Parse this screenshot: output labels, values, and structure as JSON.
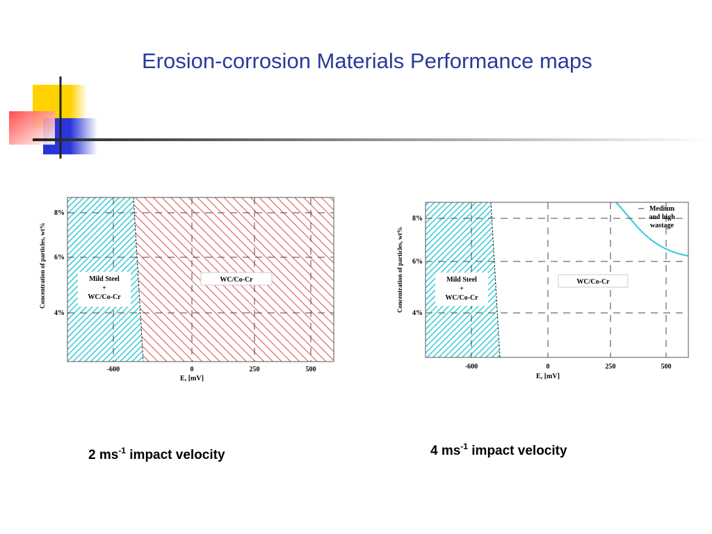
{
  "title": "Erosion-corrosion Materials Performance maps",
  "colors": {
    "title": "#2a3a9a",
    "cyan_region": "#33c9d6",
    "red_region": "#d94a4a",
    "deco_yellow": "#ffd200",
    "deco_red": "#ff3b3b",
    "deco_blue": "#2a35d9"
  },
  "maps": [
    {
      "y_axis_label": "Concentration of particles, wt%",
      "x_axis_label": "E, [mV]",
      "y_ticks": [
        "8%",
        "6%",
        "4%"
      ],
      "x_ticks": [
        "-600",
        "0",
        "250",
        "500"
      ],
      "regions": [
        {
          "label_lines": [
            "Mild Steel",
            "+",
            "WC/Co-Cr"
          ]
        },
        {
          "label_lines": [
            "WC/Co-Cr"
          ]
        }
      ],
      "caption": {
        "main": "2 ms",
        "sup": "-1",
        "rest": "impact velocity"
      }
    },
    {
      "y_axis_label": "Concentration of particles, wt%",
      "x_axis_label": "E, [mV]",
      "y_ticks": [
        "8%",
        "6%",
        "4%"
      ],
      "x_ticks": [
        "-600",
        "0",
        "250",
        "500"
      ],
      "regions": [
        {
          "label_lines": [
            "Mild Steel",
            "+",
            "WC/Co-Cr"
          ]
        },
        {
          "label_lines": [
            "WC/Co-Cr"
          ]
        },
        {
          "label_lines": [
            "Medium",
            "and high",
            "wastage"
          ]
        }
      ],
      "caption": {
        "main": "4 ms",
        "sup": "-1",
        "rest": "impact velocity"
      }
    }
  ]
}
